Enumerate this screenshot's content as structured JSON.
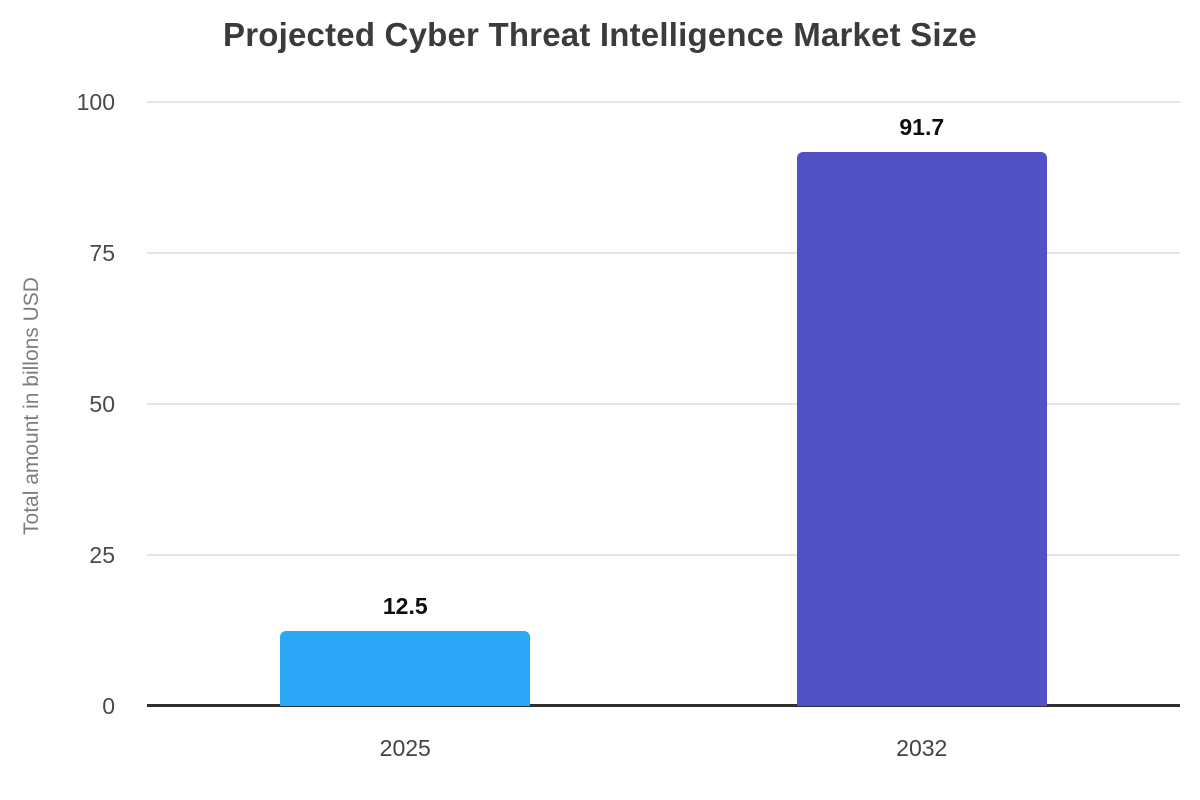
{
  "chart_data": {
    "type": "bar",
    "title": "Projected Cyber Threat Intelligence Market Size",
    "xlabel": "",
    "ylabel": "Total amount in billons USD",
    "categories": [
      "2025",
      "2032"
    ],
    "values": [
      12.5,
      91.7
    ],
    "value_labels": [
      "12.5",
      "91.7"
    ],
    "bar_colors": [
      "#2DA8F8",
      "#5150C4"
    ],
    "ylim": [
      0,
      100
    ],
    "yticks": [
      0,
      25,
      50,
      75,
      100
    ],
    "grid": "horizontal",
    "legend": "none",
    "colors": {
      "title_text": "#3b3b3b",
      "axis_line": "#2e2e2e",
      "gridline": "#e4e4e4",
      "tick_text": "#4a4a4a",
      "y_axis_label_text": "#7d7d7d",
      "value_label_text": "#0d0d0d",
      "background": "#ffffff"
    }
  }
}
